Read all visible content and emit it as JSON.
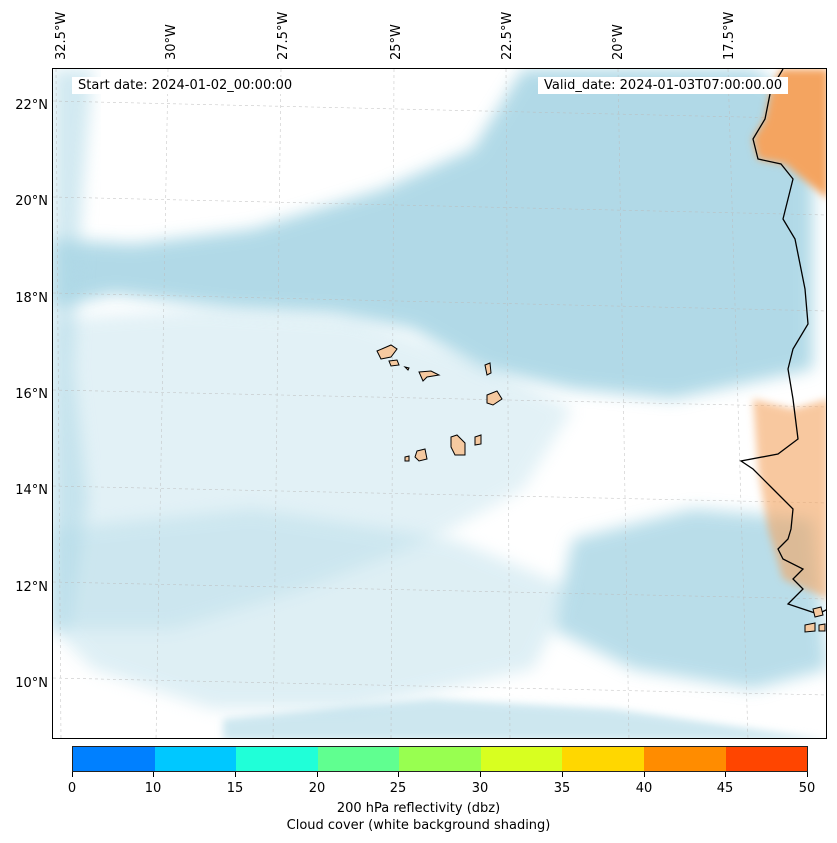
{
  "map": {
    "start_date": "Start date: 2024-01-02_00:00:00",
    "valid_date": "Valid_date: 2024-01-03T07:00:00.00",
    "longitude_labels": [
      "32.5°W",
      "30°W",
      "27.5°W",
      "25°W",
      "22.5°W",
      "20°W",
      "17.5°W"
    ],
    "latitude_labels": [
      "22°N",
      "20°N",
      "18°N",
      "16°N",
      "14°N",
      "12°N",
      "10°N"
    ],
    "colors": {
      "cloud_cover": "#add8e6",
      "land_reflectivity": "#f4a460",
      "island_fill": "#f5c9a0",
      "coastline": "#000000"
    }
  },
  "colorbar": {
    "ticks": [
      "0",
      "10",
      "15",
      "20",
      "25",
      "30",
      "35",
      "40",
      "45",
      "50"
    ],
    "colors": [
      "#0080ff",
      "#00c8ff",
      "#20ffd8",
      "#60ff90",
      "#98ff50",
      "#d8ff20",
      "#ffd700",
      "#ff8c00",
      "#ff4500"
    ],
    "label_line1": "200 hPa reflectivity (dbz)",
    "label_line2": "Cloud cover (white background shading)"
  }
}
